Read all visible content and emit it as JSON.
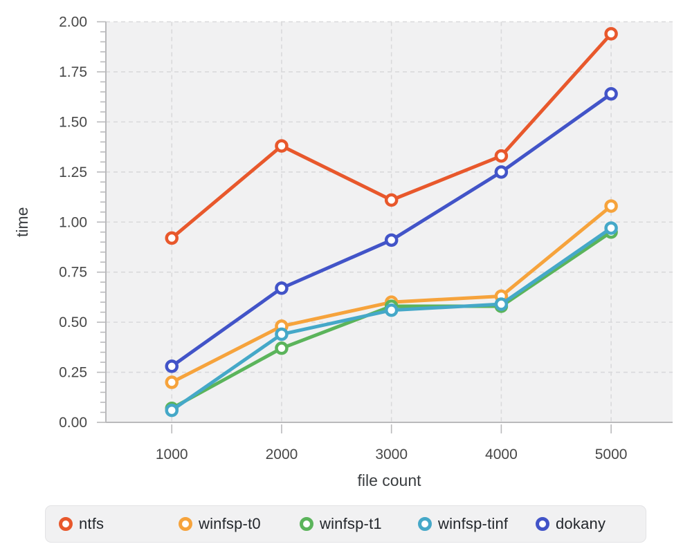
{
  "chart_data": {
    "type": "line",
    "title": "",
    "xlabel": "file count",
    "ylabel": "time",
    "x": [
      1000,
      2000,
      3000,
      4000,
      5000
    ],
    "x_tick_labels": [
      "1000",
      "2000",
      "3000",
      "4000",
      "5000"
    ],
    "series": [
      {
        "name": "ntfs",
        "color": "#E8582C",
        "values": [
          0.92,
          1.38,
          1.11,
          1.33,
          1.94
        ]
      },
      {
        "name": "winfsp-t0",
        "color": "#F6A33C",
        "values": [
          0.2,
          0.48,
          0.6,
          0.63,
          1.08
        ]
      },
      {
        "name": "winfsp-t1",
        "color": "#5BB45B",
        "values": [
          0.07,
          0.37,
          0.58,
          0.58,
          0.95
        ]
      },
      {
        "name": "winfsp-tinf",
        "color": "#45A8C8",
        "values": [
          0.06,
          0.44,
          0.56,
          0.59,
          0.97
        ]
      },
      {
        "name": "dokany",
        "color": "#4254C8",
        "values": [
          0.28,
          0.67,
          0.91,
          1.25,
          1.64
        ]
      }
    ],
    "xlim": [
      400,
      5560
    ],
    "ylim": [
      0,
      2.0
    ],
    "y_major_step": 0.25,
    "y_minor_step": 0.05,
    "y_tick_labels": [
      "0.00",
      "0.25",
      "0.50",
      "0.75",
      "1.00",
      "1.25",
      "1.50",
      "1.75",
      "2.00"
    ],
    "grid": "dashed",
    "legend_position": "bottom",
    "colors": {
      "plot_background": "#f1f1f2",
      "gridline": "#d9d9db",
      "axis_line": "#b9b9bb",
      "tick_label": "#474747",
      "axis_title": "#3a3d40",
      "legend_background": "#f1f1f2",
      "legend_border": "#e3e3e5",
      "legend_text": "#23272c",
      "marker_fill": "#ffffff"
    }
  }
}
